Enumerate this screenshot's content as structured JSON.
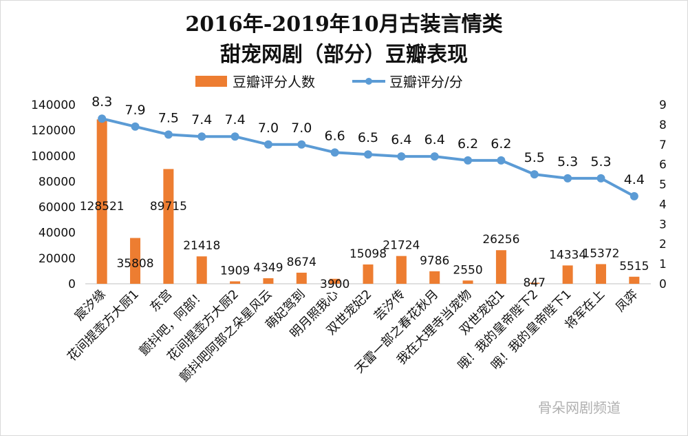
{
  "chart_data": {
    "type": "bar",
    "title_line1": "2016年-2019年10月古装言情类",
    "title_line2": "甜宠网剧（部分）豆瓣表现",
    "categories": [
      "宸汐缘",
      "花间提壶方大厨1",
      "东宫",
      "颤抖吧，阿部！",
      "花间提壶方大厨2",
      "颤抖吧阿部之朵星风云",
      "萌妃驾到",
      "明月照我心",
      "双世宠妃2",
      "芸汐传",
      "天雷一部之春花秋月",
      "我在大理寺当宠物",
      "双世宠妃1",
      "哦！我的皇帝陛下2",
      "哦！我的皇帝陛下1",
      "将军在上",
      "凤弈"
    ],
    "series": [
      {
        "name": "豆瓣评分人数",
        "type": "bar",
        "axis": "left",
        "color": "#ED7D31",
        "values": [
          128521,
          35808,
          89715,
          21418,
          1909,
          4349,
          8674,
          3900,
          15098,
          21724,
          9786,
          2550,
          26256,
          847,
          14334,
          15372,
          5515
        ]
      },
      {
        "name": "豆瓣评分/分",
        "type": "line",
        "axis": "right",
        "color": "#5B9BD5",
        "values": [
          8.3,
          7.9,
          7.5,
          7.4,
          7.4,
          7.0,
          7.0,
          6.6,
          6.5,
          6.4,
          6.4,
          6.2,
          6.2,
          5.5,
          5.3,
          5.3,
          4.4
        ]
      }
    ],
    "y_left": {
      "min": 0,
      "max": 140000,
      "ticks": [
        "0",
        "20000",
        "40000",
        "60000",
        "80000",
        "100000",
        "120000",
        "140000"
      ]
    },
    "y_right": {
      "min": 0,
      "max": 9,
      "ticks": [
        "0",
        "1",
        "2",
        "3",
        "4",
        "5",
        "6",
        "7",
        "8",
        "9"
      ]
    },
    "bar_labels": [
      "128521",
      "35808",
      "89715",
      "21418",
      "1909",
      "4349",
      "8674",
      "3900",
      "15098",
      "21724",
      "9786",
      "2550",
      "26256",
      "847",
      "14334",
      "15372",
      "5515"
    ],
    "line_labels": [
      "8.3",
      "7.9",
      "7.5",
      "7.4",
      "7.4",
      "7.0",
      "7.0",
      "6.6",
      "6.5",
      "6.4",
      "6.4",
      "6.2",
      "6.2",
      "5.5",
      "5.3",
      "5.3",
      "4.4"
    ],
    "legend_position": "top",
    "grid": false
  },
  "watermark": "骨朵网剧频道"
}
